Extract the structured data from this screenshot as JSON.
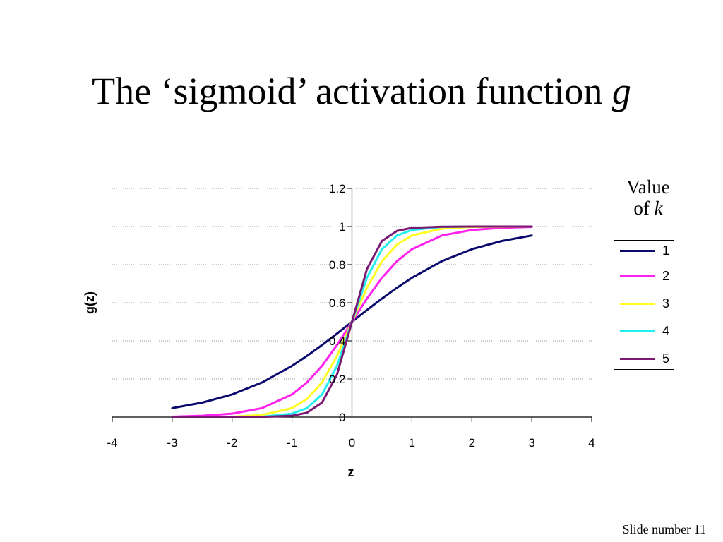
{
  "slide": {
    "title_main": "The ‘sigmoid’ activation function",
    "title_var": "g",
    "footer": "Slide number 11"
  },
  "legend": {
    "title_line1": "Value",
    "title_of": "of",
    "title_var": "k"
  },
  "chart_data": {
    "type": "line",
    "title": "",
    "xlabel": "z",
    "ylabel": "g(z)",
    "xlim": [
      -4,
      4
    ],
    "ylim": [
      0,
      1.2
    ],
    "x_ticks": [
      "-4",
      "-3",
      "-2",
      "-1",
      "0",
      "1",
      "2",
      "3",
      "4"
    ],
    "y_ticks": [
      "0",
      "0.2",
      "0.4",
      "0.6",
      "0.8",
      "1",
      "1.2"
    ],
    "grid": "horizontal dotted",
    "legend_position": "right",
    "x": [
      -3,
      -2.5,
      -2,
      -1.5,
      -1,
      -0.75,
      -0.5,
      -0.25,
      0,
      0.25,
      0.5,
      0.75,
      1,
      1.5,
      2,
      2.5,
      3
    ],
    "series": [
      {
        "name": "1",
        "color": "#0a0a6e",
        "values": [
          0.047,
          0.076,
          0.119,
          0.182,
          0.269,
          0.321,
          0.378,
          0.438,
          0.5,
          0.562,
          0.622,
          0.679,
          0.731,
          0.818,
          0.881,
          0.924,
          0.953
        ]
      },
      {
        "name": "2",
        "color": "#ff22ee",
        "values": [
          0.002,
          0.007,
          0.018,
          0.047,
          0.119,
          0.182,
          0.269,
          0.378,
          0.5,
          0.622,
          0.731,
          0.818,
          0.881,
          0.953,
          0.982,
          0.993,
          0.998
        ]
      },
      {
        "name": "3",
        "color": "#ffff22",
        "values": [
          0.0,
          0.001,
          0.002,
          0.011,
          0.047,
          0.095,
          0.182,
          0.321,
          0.5,
          0.679,
          0.818,
          0.905,
          0.953,
          0.989,
          0.998,
          0.999,
          1.0
        ]
      },
      {
        "name": "4",
        "color": "#22eeee",
        "values": [
          0.0,
          0.0,
          0.0,
          0.002,
          0.018,
          0.047,
          0.119,
          0.269,
          0.5,
          0.731,
          0.881,
          0.953,
          0.982,
          0.998,
          1.0,
          1.0,
          1.0
        ]
      },
      {
        "name": "5",
        "color": "#7a1a72",
        "values": [
          0.0,
          0.0,
          0.0,
          0.001,
          0.007,
          0.023,
          0.076,
          0.223,
          0.5,
          0.777,
          0.924,
          0.977,
          0.993,
          0.999,
          1.0,
          1.0,
          1.0
        ]
      }
    ]
  }
}
